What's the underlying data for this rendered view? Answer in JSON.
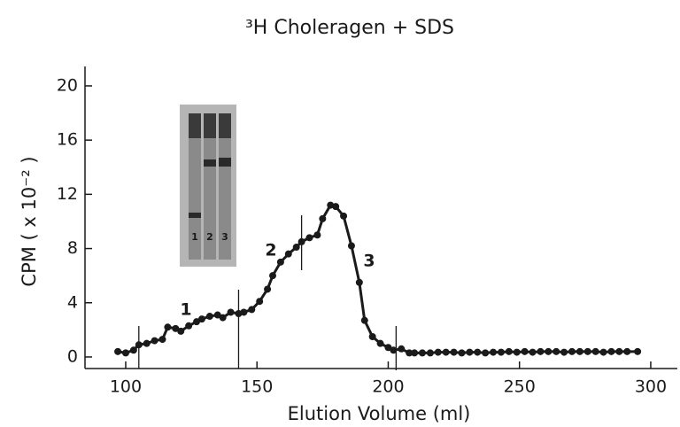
{
  "chart_data": {
    "type": "line",
    "title": "³H Choleragen + SDS",
    "x_label": "Elution Volume (ml)",
    "y_label": "CPM ( x 10⁻² )",
    "x": [
      97,
      100,
      103,
      105,
      108,
      111,
      114,
      116,
      119,
      121,
      124,
      127,
      129,
      132,
      135,
      137,
      140,
      143,
      145,
      148,
      151,
      154,
      156,
      159,
      162,
      165,
      167,
      170,
      173,
      175,
      178,
      180,
      183,
      186,
      189,
      191,
      194,
      197,
      200,
      202,
      205,
      208,
      210,
      213,
      216,
      219,
      222,
      225,
      228,
      231,
      234,
      237,
      240,
      243,
      246,
      249,
      252,
      255,
      258,
      261,
      264,
      267,
      270,
      273,
      276,
      279,
      282,
      285,
      288,
      291,
      295
    ],
    "series": [
      {
        "color": "#1a1a1a",
        "values": [
          0.4,
          0.3,
          0.5,
          0.9,
          1.0,
          1.2,
          1.3,
          2.2,
          2.1,
          1.9,
          2.3,
          2.6,
          2.8,
          3.0,
          3.1,
          2.9,
          3.3,
          3.2,
          3.3,
          3.5,
          4.1,
          5.0,
          6.0,
          7.0,
          7.6,
          8.1,
          8.5,
          8.8,
          9.0,
          10.2,
          11.2,
          11.1,
          10.4,
          8.2,
          5.5,
          2.7,
          1.5,
          1.0,
          0.7,
          0.5,
          0.6,
          0.3,
          0.3,
          0.3,
          0.3,
          0.35,
          0.35,
          0.35,
          0.3,
          0.35,
          0.35,
          0.3,
          0.35,
          0.35,
          0.4,
          0.35,
          0.4,
          0.35,
          0.4,
          0.4,
          0.4,
          0.35,
          0.4,
          0.4,
          0.4,
          0.4,
          0.35,
          0.4,
          0.4,
          0.4,
          0.4
        ]
      }
    ],
    "fraction_dividers": [
      105,
      143,
      167,
      203
    ],
    "annotations": [
      "1",
      "2",
      "3"
    ],
    "inset_lane_labels": [
      "1",
      "2",
      "3"
    ],
    "xlim": [
      85,
      310
    ],
    "ylim": [
      -0.8,
      21.5
    ],
    "xticks": [
      100,
      150,
      200,
      250,
      300
    ],
    "yticks": [
      0,
      4,
      8,
      12,
      16,
      20
    ]
  }
}
